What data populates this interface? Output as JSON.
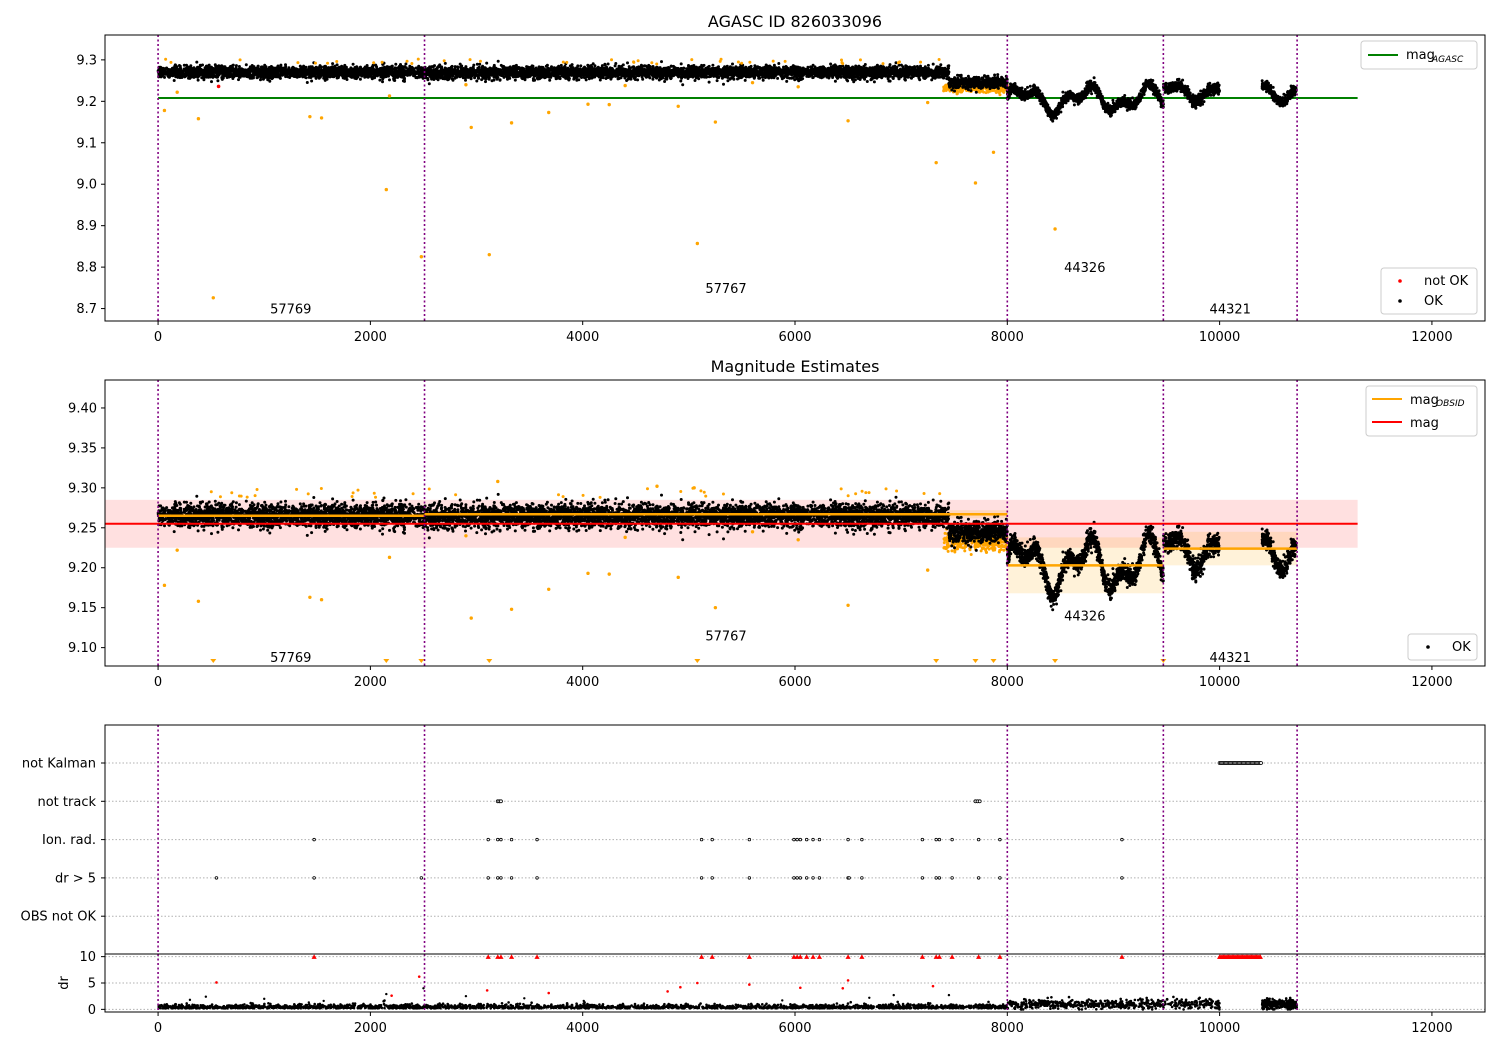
{
  "figure": {
    "top_title": "AGASC ID 826033096",
    "mid_title": "Magnitude Estimates"
  },
  "chart_data": [
    {
      "type": "scatter",
      "title": "AGASC ID 826033096",
      "xlim": [
        -500,
        12500
      ],
      "ylim": [
        8.67,
        9.36
      ],
      "x_ticks": [
        0,
        2000,
        4000,
        6000,
        8000,
        10000,
        12000
      ],
      "y_ticks": [
        8.7,
        8.8,
        8.9,
        9.0,
        9.1,
        9.2,
        9.3
      ],
      "y_tick_labels": [
        "8.7",
        "8.8",
        "8.9",
        "9.0",
        "9.1",
        "9.2",
        "9.3"
      ],
      "obsid_boundaries": [
        0,
        2510,
        8000,
        9470,
        10730
      ],
      "obsid_labels": [
        {
          "text": "57769",
          "x": 1250,
          "y": 8.7
        },
        {
          "text": "57767",
          "x": 5350,
          "y": 8.75
        },
        {
          "text": "44326",
          "x": 8730,
          "y": 8.8
        },
        {
          "text": "44321",
          "x": 10100,
          "y": 8.7
        }
      ],
      "mag_agasc": 9.208,
      "mag_agasc_xrange": [
        0,
        11300
      ],
      "legend_lines": [
        {
          "label": "mag",
          "subscript": "AGASC",
          "color": "#008000"
        }
      ],
      "legend_markers": [
        {
          "label": "not OK",
          "color": "#ff0000"
        },
        {
          "label": "OK",
          "color": "#000000"
        }
      ],
      "outliers": [
        [
          60,
          9.178
        ],
        [
          380,
          9.158
        ],
        [
          520,
          8.726
        ],
        [
          1430,
          9.163
        ],
        [
          1540,
          9.16
        ],
        [
          2150,
          8.987
        ],
        [
          2480,
          8.825
        ],
        [
          2950,
          9.137
        ],
        [
          3120,
          8.83
        ],
        [
          3330,
          9.148
        ],
        [
          3680,
          9.173
        ],
        [
          4050,
          9.193
        ],
        [
          4250,
          9.192
        ],
        [
          4900,
          9.188
        ],
        [
          5080,
          8.857
        ],
        [
          5250,
          9.15
        ],
        [
          6500,
          9.153
        ],
        [
          7330,
          9.052
        ],
        [
          7700,
          9.003
        ],
        [
          7870,
          9.077
        ],
        [
          8450,
          8.892
        ],
        [
          180,
          9.222
        ],
        [
          2180,
          9.213
        ],
        [
          6030,
          9.235
        ],
        [
          7250,
          9.197
        ],
        [
          2900,
          9.24
        ],
        [
          4400,
          9.238
        ],
        [
          5600,
          9.245
        ]
      ],
      "segments": [
        {
          "x0": 0,
          "x1": 7450,
          "center": 9.27,
          "spread": 0.013
        },
        {
          "x0": 7450,
          "x1": 8000,
          "center": 9.245,
          "spread": 0.012
        }
      ],
      "wave_segments": [
        {
          "x0": 8000,
          "x1": 9470,
          "center": 9.205,
          "amp": 0.042
        },
        {
          "x0": 9470,
          "x1": 10000,
          "center": 9.225,
          "amp": 0.03
        },
        {
          "x0": 10400,
          "x1": 10720,
          "center": 9.225,
          "amp": 0.03
        }
      ]
    },
    {
      "type": "scatter",
      "title": "Magnitude Estimates",
      "xlim": [
        -500,
        12500
      ],
      "ylim": [
        9.077,
        9.435
      ],
      "x_ticks": [
        0,
        2000,
        4000,
        6000,
        8000,
        10000,
        12000
      ],
      "y_ticks": [
        9.1,
        9.15,
        9.2,
        9.25,
        9.3,
        9.35,
        9.4
      ],
      "y_tick_labels": [
        "9.10",
        "9.15",
        "9.20",
        "9.25",
        "9.30",
        "9.35",
        "9.40"
      ],
      "obsid_boundaries": [
        0,
        2510,
        8000,
        9470,
        10730
      ],
      "obsid_labels": [
        {
          "text": "57769",
          "x": 1250,
          "y": 9.088
        },
        {
          "text": "57767",
          "x": 5350,
          "y": 9.115
        },
        {
          "text": "44326",
          "x": 8730,
          "y": 9.14
        },
        {
          "text": "44321",
          "x": 10100,
          "y": 9.088
        }
      ],
      "mag": 9.255,
      "mag_band": [
        9.225,
        9.285
      ],
      "mag_xrange": [
        -500,
        11300
      ],
      "mag_obsid": [
        {
          "x0": 0,
          "x1": 2510,
          "value": 9.265,
          "band": [
            9.262,
            9.268
          ]
        },
        {
          "x0": 2510,
          "x1": 8000,
          "value": 9.267,
          "band": [
            9.262,
            9.272
          ]
        },
        {
          "x0": 8000,
          "x1": 9470,
          "value": 9.203,
          "band": [
            9.168,
            9.238
          ]
        },
        {
          "x0": 9470,
          "x1": 10730,
          "value": 9.224,
          "band": [
            9.203,
            9.245
          ]
        }
      ],
      "legend_lines": [
        {
          "label": "mag",
          "subscript": "OBSID",
          "color": "#ffa500"
        },
        {
          "label": "mag",
          "subscript": "",
          "color": "#ff0000"
        }
      ],
      "legend_markers": [
        {
          "label": "OK",
          "color": "#000000"
        }
      ],
      "outliers": [
        [
          60,
          9.178
        ],
        [
          380,
          9.158
        ],
        [
          1430,
          9.163
        ],
        [
          1540,
          9.16
        ],
        [
          2950,
          9.137
        ],
        [
          3330,
          9.148
        ],
        [
          3680,
          9.173
        ],
        [
          4050,
          9.193
        ],
        [
          4250,
          9.192
        ],
        [
          4900,
          9.188
        ],
        [
          5250,
          9.15
        ],
        [
          6500,
          9.153
        ],
        [
          7250,
          9.197
        ],
        [
          180,
          9.222
        ],
        [
          2180,
          9.213
        ],
        [
          6030,
          9.235
        ],
        [
          2900,
          9.24
        ],
        [
          4400,
          9.238
        ],
        [
          5600,
          9.245
        ],
        [
          3200,
          9.308
        ],
        [
          4700,
          9.302
        ],
        [
          5050,
          9.3
        ]
      ],
      "below_range_markers": [
        520,
        2150,
        2480,
        3120,
        5080,
        7330,
        7700,
        7870,
        8450,
        9470
      ],
      "segments": [
        {
          "x0": 0,
          "x1": 7450,
          "center": 9.265,
          "spread": 0.013
        },
        {
          "x0": 7450,
          "x1": 8000,
          "center": 9.245,
          "spread": 0.012
        }
      ],
      "wave_segments": [
        {
          "x0": 8000,
          "x1": 9470,
          "center": 9.203,
          "amp": 0.045
        },
        {
          "x0": 9470,
          "x1": 10000,
          "center": 9.224,
          "amp": 0.03
        },
        {
          "x0": 10400,
          "x1": 10720,
          "center": 9.224,
          "amp": 0.03
        }
      ]
    },
    {
      "type": "scatter",
      "title": "",
      "xlim": [
        -500,
        12500
      ],
      "flag_rows": [
        "not Kalman",
        "not track",
        "Ion. rad.",
        "dr > 5",
        "OBS not OK"
      ],
      "flags": {
        "not Kalman": [
          [
            10000,
            10390
          ]
        ],
        "not track": [
          [
            3200,
            3230
          ],
          [
            7700,
            7740
          ]
        ],
        "Ion. rad.": [
          1470,
          3110,
          3200,
          3230,
          3330,
          3570,
          5120,
          5220,
          5570,
          5990,
          6020,
          6050,
          6110,
          6170,
          6230,
          6500,
          6630,
          7200,
          7330,
          7360,
          7480,
          7730,
          7930,
          9080
        ],
        "dr > 5": [
          550,
          1470,
          2480,
          3110,
          3200,
          3230,
          3330,
          3570,
          5120,
          5220,
          5570,
          5990,
          6020,
          6050,
          6110,
          6170,
          6230,
          6500,
          6510,
          6630,
          7200,
          7330,
          7360,
          7480,
          7730,
          7930,
          9080
        ],
        "OBS not OK": []
      },
      "dr_ylabel": "dr",
      "dr_ylim": [
        -0.5,
        10.5
      ],
      "dr_ticks": [
        0,
        5,
        10
      ],
      "dr_clipped_x": [
        1470,
        3110,
        3200,
        3230,
        3330,
        3570,
        5120,
        5220,
        5570,
        5990,
        6020,
        6050,
        6110,
        6170,
        6230,
        6500,
        6630,
        7200,
        7330,
        7360,
        7480,
        7730,
        7930,
        9080
      ],
      "dr_clipped_range": [
        10000,
        10390
      ],
      "dr_red_points": [
        [
          550,
          5.1
        ],
        [
          2460,
          6.2
        ],
        [
          3100,
          3.6
        ],
        [
          3680,
          3.1
        ],
        [
          4800,
          3.4
        ],
        [
          5080,
          5.0
        ],
        [
          5570,
          4.7
        ],
        [
          6050,
          4.1
        ],
        [
          6450,
          4.0
        ],
        [
          6500,
          5.5
        ],
        [
          7300,
          4.4
        ],
        [
          2200,
          2.6
        ],
        [
          4920,
          4.2
        ]
      ],
      "dr_black_points": [
        [
          300,
          1.8
        ],
        [
          450,
          2.4
        ],
        [
          1000,
          2.0
        ],
        [
          1420,
          1.3
        ],
        [
          1560,
          1.6
        ],
        [
          2150,
          2.9
        ],
        [
          2500,
          4.0
        ],
        [
          2900,
          2.5
        ],
        [
          3450,
          2.1
        ],
        [
          4010,
          1.6
        ],
        [
          5880,
          1.7
        ],
        [
          6930,
          2.7
        ],
        [
          7450,
          2.7
        ],
        [
          6700,
          2.2
        ]
      ]
    }
  ],
  "colors": {
    "ok": "#000000",
    "not_ok": "#ff0000",
    "outlier": "#ffa500",
    "agasc_line": "#008000",
    "mag_line": "#ff0000",
    "mag_obsid_line": "#ffa500",
    "obsid_boundary": "#800080"
  }
}
